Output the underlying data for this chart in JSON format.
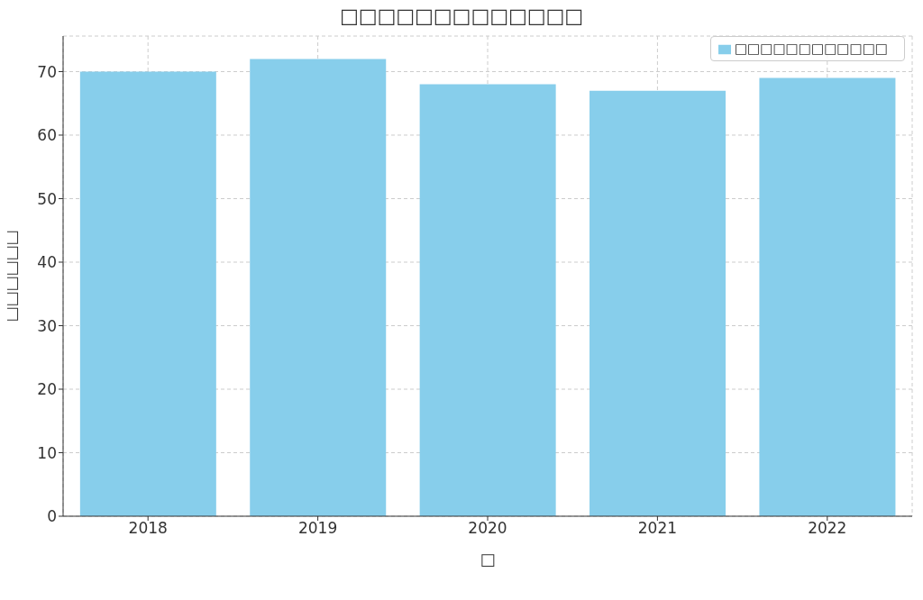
{
  "chart_data": {
    "type": "bar",
    "title": "□□□□□□□□□□□□□",
    "xlabel": "□",
    "ylabel": "□□□□□□",
    "categories": [
      "2018",
      "2019",
      "2020",
      "2021",
      "2022"
    ],
    "series": [
      {
        "name": "□□□□□□□□□□□□",
        "color": "#87ceeb",
        "values": [
          70,
          72,
          68,
          67,
          69
        ]
      }
    ],
    "ylim": [
      0,
      75.6
    ],
    "yticks": [
      0,
      10,
      20,
      30,
      40,
      50,
      60,
      70
    ],
    "grid": true,
    "legend": "top right"
  }
}
